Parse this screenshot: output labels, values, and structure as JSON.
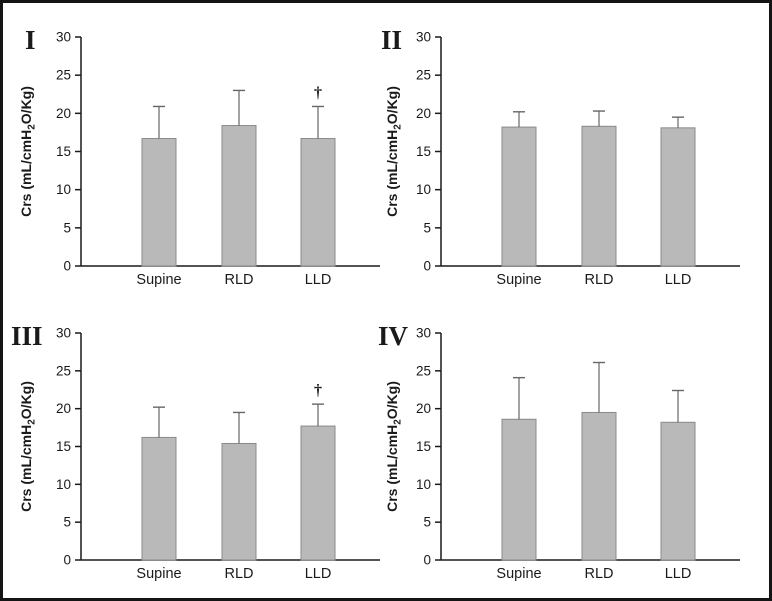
{
  "figure": {
    "background": "#ffffff",
    "border_color": "#141414"
  },
  "chart_data": [
    {
      "type": "bar",
      "panel_label": "I",
      "categories": [
        "Supine",
        "RLD",
        "LLD"
      ],
      "values": [
        16.7,
        18.4,
        16.7
      ],
      "errors_up": [
        4.2,
        4.6,
        4.2
      ],
      "annotations": [
        {
          "category": "LLD",
          "category_index": 2,
          "symbol": "†"
        }
      ],
      "ylabel_pre": "Crs (mL/cmH",
      "ylabel_sub": "2",
      "ylabel_post": "O/Kg)",
      "ylim": [
        0,
        30
      ],
      "yticks": [
        0,
        5,
        10,
        15,
        20,
        25,
        30
      ],
      "grid": "off",
      "legend": "none",
      "bar_color": "#b9b9b9",
      "bar_edge_color": "#8a8a8a",
      "error_bar_color": "#666666",
      "axis_color": "#1a1a1a"
    },
    {
      "type": "bar",
      "panel_label": "II",
      "categories": [
        "Supine",
        "RLD",
        "LLD"
      ],
      "values": [
        18.2,
        18.3,
        18.1
      ],
      "errors_up": [
        2.0,
        2.0,
        1.4
      ],
      "annotations": [],
      "ylabel_pre": "Crs (mL/cmH",
      "ylabel_sub": "2",
      "ylabel_post": "O/Kg)",
      "ylim": [
        0,
        30
      ],
      "yticks": [
        0,
        5,
        10,
        15,
        20,
        25,
        30
      ],
      "grid": "off",
      "legend": "none",
      "bar_color": "#b9b9b9",
      "bar_edge_color": "#8a8a8a",
      "error_bar_color": "#666666",
      "axis_color": "#1a1a1a"
    },
    {
      "type": "bar",
      "panel_label": "III",
      "categories": [
        "Supine",
        "RLD",
        "LLD"
      ],
      "values": [
        16.2,
        15.4,
        17.7
      ],
      "errors_up": [
        4.0,
        4.1,
        2.9
      ],
      "annotations": [
        {
          "category": "LLD",
          "category_index": 2,
          "symbol": "†"
        }
      ],
      "ylabel_pre": "Crs (mL/cmH",
      "ylabel_sub": "2",
      "ylabel_post": "O/Kg)",
      "ylim": [
        0,
        30
      ],
      "yticks": [
        0,
        5,
        10,
        15,
        20,
        25,
        30
      ],
      "grid": "off",
      "legend": "none",
      "bar_color": "#b9b9b9",
      "bar_edge_color": "#8a8a8a",
      "error_bar_color": "#666666",
      "axis_color": "#1a1a1a"
    },
    {
      "type": "bar",
      "panel_label": "IV",
      "categories": [
        "Supine",
        "RLD",
        "LLD"
      ],
      "values": [
        18.6,
        19.5,
        18.2
      ],
      "errors_up": [
        5.5,
        6.6,
        4.2
      ],
      "annotations": [],
      "ylabel_pre": "Crs (mL/cmH",
      "ylabel_sub": "2",
      "ylabel_post": "O/Kg)",
      "ylim": [
        0,
        30
      ],
      "yticks": [
        0,
        5,
        10,
        15,
        20,
        25,
        30
      ],
      "grid": "off",
      "legend": "none",
      "bar_color": "#b9b9b9",
      "bar_edge_color": "#8a8a8a",
      "error_bar_color": "#666666",
      "axis_color": "#1a1a1a"
    }
  ]
}
